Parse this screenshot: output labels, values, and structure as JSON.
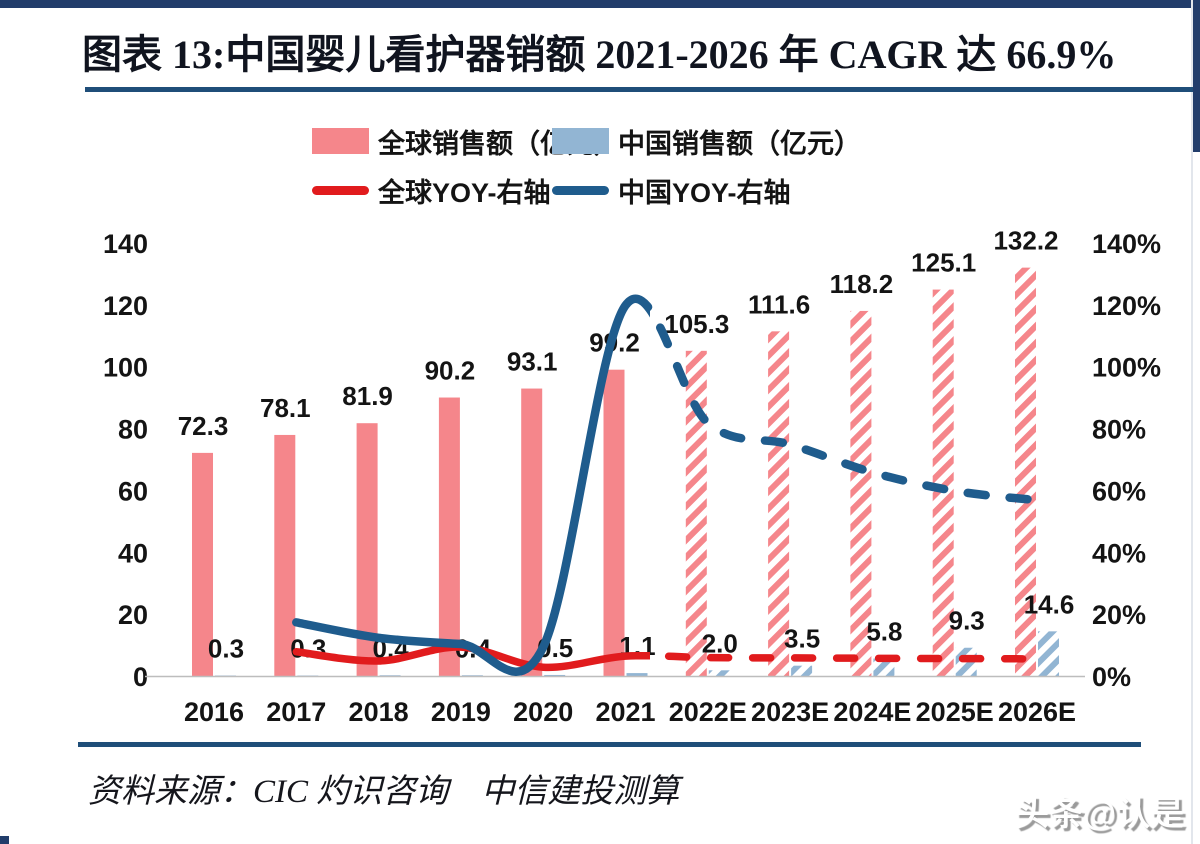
{
  "page": {
    "title": "图表 13:中国婴儿看护器销额 2021-2026 年 CAGR 达 66.9%",
    "source": "资料来源：CIC 灼识咨询　中信建投测算",
    "watermark": "头条@认是"
  },
  "colors": {
    "navy_structure": "#1f4e79",
    "navy_strip": "#223d6b",
    "global_bar_pink": "#f5868b",
    "china_bar_blue": "#92b5d3",
    "global_yoy_red": "#e11b1d",
    "china_yoy_blue": "#1f5c8d",
    "axis_baseline_gray": "#bdbdbd",
    "label_text": "#141414"
  },
  "legend": {
    "items": [
      {
        "label": "全球销售额（亿元）",
        "swatch": "bar",
        "color": "#f5868b"
      },
      {
        "label": "中国销售额（亿元）",
        "swatch": "bar",
        "color": "#92b5d3"
      },
      {
        "label": "全球YOY-右轴",
        "swatch": "line",
        "color": "#e11b1d"
      },
      {
        "label": "中国YOY-右轴",
        "swatch": "line",
        "color": "#1f5c8d"
      }
    ]
  },
  "chart_data": {
    "type": "bar",
    "subtype": "combo-bar-line-dual-axis",
    "categories": [
      "2016",
      "2017",
      "2018",
      "2019",
      "2020",
      "2021",
      "2022E",
      "2023E",
      "2024E",
      "2025E",
      "2026E"
    ],
    "forecast_start_index": 6,
    "left_axis": {
      "ticks": [
        0,
        20,
        40,
        60,
        80,
        100,
        120,
        140
      ],
      "min": 0,
      "max": 140
    },
    "right_axis": {
      "ticks": [
        "0%",
        "20%",
        "40%",
        "60%",
        "80%",
        "100%",
        "120%",
        "140%"
      ],
      "min_pct": 0,
      "max_pct": 140
    },
    "grid": "off",
    "legend_position": "top",
    "series": [
      {
        "name": "全球销售额（亿元）",
        "type": "bar",
        "axis": "left",
        "color": "#f5868b",
        "values": [
          72.3,
          78.1,
          81.9,
          90.2,
          93.1,
          99.2,
          105.3,
          111.6,
          118.2,
          125.1,
          132.2
        ],
        "labels": [
          "72.3",
          "78.1",
          "81.9",
          "90.2",
          "93.1",
          "99.2",
          "105.3",
          "111.6",
          "118.2",
          "125.1",
          "132.2"
        ],
        "forecast_style": "diagonal-hatch"
      },
      {
        "name": "中国销售额（亿元）",
        "type": "bar",
        "axis": "left",
        "color": "#92b5d3",
        "values": [
          0.3,
          0.3,
          0.4,
          0.4,
          0.5,
          1.1,
          2.0,
          3.5,
          5.8,
          9.3,
          14.6
        ],
        "labels": [
          "0.3",
          "0.3",
          "0.4",
          "0.4",
          "0.5",
          "1.1",
          "2.0",
          "3.5",
          "5.8",
          "9.3",
          "14.6"
        ],
        "forecast_style": "diagonal-hatch"
      },
      {
        "name": "全球YOY-右轴",
        "type": "line",
        "axis": "right",
        "color": "#e11b1d",
        "values_pct": [
          null,
          8,
          5,
          9.5,
          3,
          6.6,
          6.1,
          6.0,
          5.9,
          5.8,
          5.7
        ],
        "forecast_style": "dashed"
      },
      {
        "name": "中国YOY-右轴",
        "type": "line",
        "axis": "right",
        "color": "#1f5c8d",
        "values_pct": [
          null,
          17.5,
          12.5,
          10.5,
          9.5,
          120,
          82,
          75,
          66,
          60,
          57
        ],
        "forecast_style": "dashed"
      }
    ]
  }
}
